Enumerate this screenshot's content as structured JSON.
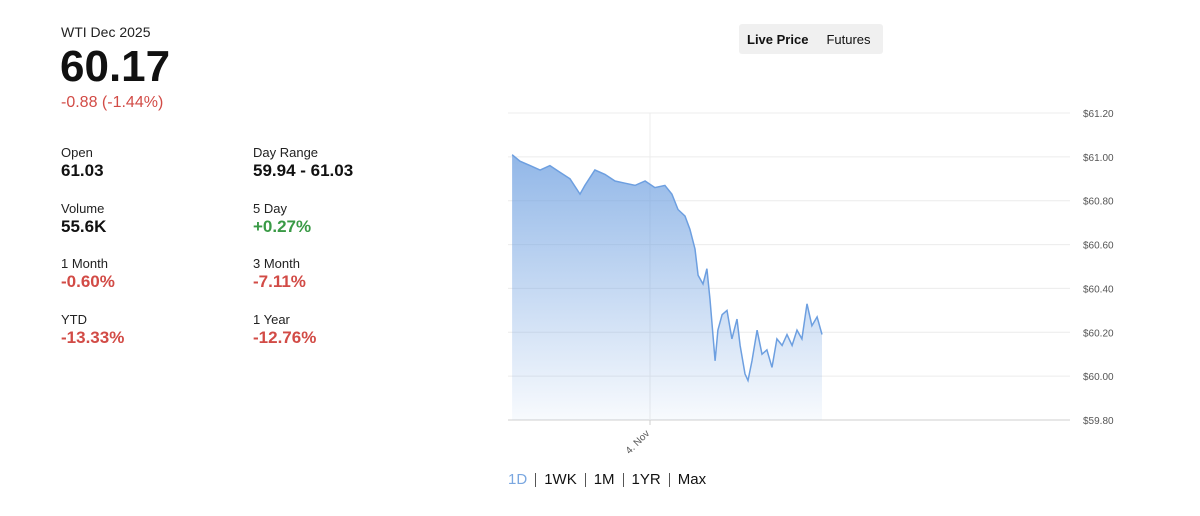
{
  "quote": {
    "name": "WTI Dec 2025",
    "price": "60.17",
    "change": "-0.88 (-1.44%)",
    "change_color": "#d24b46"
  },
  "stats": [
    {
      "label": "Open",
      "value": "61.03",
      "color": "#111111"
    },
    {
      "label": "Day Range",
      "value": "59.94 - 61.03",
      "color": "#111111"
    },
    {
      "label": "Volume",
      "value": "55.6K",
      "color": "#111111"
    },
    {
      "label": "5 Day",
      "value": "+0.27%",
      "color": "#3a9a46"
    },
    {
      "label": "1 Month",
      "value": "-0.60%",
      "color": "#d24b46"
    },
    {
      "label": "3 Month",
      "value": "-7.11%",
      "color": "#d24b46"
    },
    {
      "label": "YTD",
      "value": "-13.33%",
      "color": "#d24b46"
    },
    {
      "label": "1 Year",
      "value": "-12.76%",
      "color": "#d24b46"
    }
  ],
  "tabs": [
    "Live Price",
    "Futures"
  ],
  "ranges": [
    "1D",
    "1WK",
    "1M",
    "1YR",
    "Max"
  ],
  "chart_data": {
    "type": "area",
    "color": "#6d9fe0",
    "x": [
      18.09,
      18.43,
      18.86,
      19.29,
      19.71,
      20.14,
      20.57,
      21.0,
      21.21,
      21.64,
      22.07,
      22.5,
      22.93,
      23.36,
      23.79,
      24.21,
      24.64,
      24.94,
      25.2,
      25.5,
      25.71,
      25.93,
      26.06,
      26.27,
      26.44,
      26.57,
      26.79,
      26.91,
      27.09,
      27.3,
      27.51,
      27.73,
      27.86,
      28.07,
      28.2,
      28.37,
      28.59,
      28.8,
      29.01,
      29.23,
      29.44,
      29.66,
      29.87,
      30.09,
      30.3,
      30.51,
      30.73,
      30.94,
      31.16,
      31.37
    ],
    "values": [
      61.01,
      60.98,
      60.96,
      60.94,
      60.96,
      60.93,
      60.9,
      60.83,
      60.87,
      60.94,
      60.92,
      60.89,
      60.88,
      60.87,
      60.89,
      60.86,
      60.87,
      60.83,
      60.76,
      60.73,
      60.67,
      60.58,
      60.46,
      60.42,
      60.49,
      60.35,
      60.07,
      60.21,
      60.28,
      60.3,
      60.17,
      60.26,
      60.14,
      60.01,
      59.98,
      60.07,
      60.21,
      60.1,
      60.12,
      60.04,
      60.17,
      60.14,
      60.19,
      60.14,
      60.21,
      60.17,
      60.33,
      60.23,
      60.27,
      60.19
    ],
    "xlim": [
      18,
      42
    ],
    "xticks": [
      {
        "value": 24,
        "label": "4. Nov"
      }
    ],
    "ylim": [
      59.8,
      61.2
    ],
    "yticks": [
      {
        "value": 59.8,
        "label": "$59.80"
      },
      {
        "value": 60.0,
        "label": "$60.00"
      },
      {
        "value": 60.2,
        "label": "$60.20"
      },
      {
        "value": 60.4,
        "label": "$60.40"
      },
      {
        "value": 60.6,
        "label": "$60.60"
      },
      {
        "value": 60.8,
        "label": "$60.80"
      },
      {
        "value": 61.0,
        "label": "$61.00"
      },
      {
        "value": 61.2,
        "label": "$61.20"
      }
    ],
    "grid": true
  }
}
